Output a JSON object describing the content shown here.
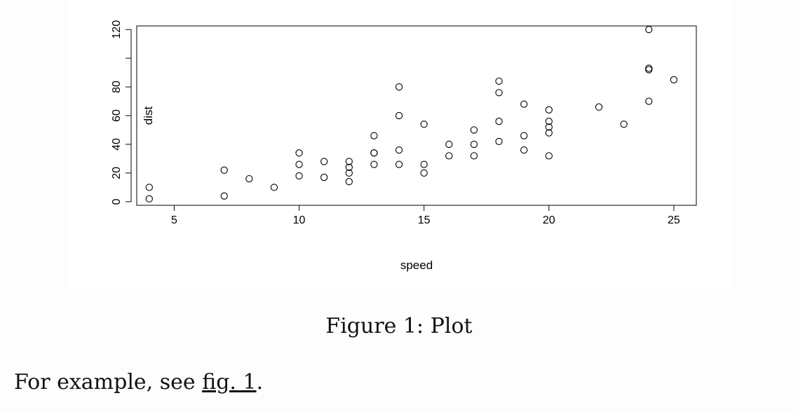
{
  "caption": "Figure 1: Plot",
  "body": {
    "prefix": "For example, see ",
    "link_text": "fig. 1",
    "suffix": "."
  },
  "chart_data": {
    "type": "scatter",
    "title": "",
    "xlabel": "speed",
    "ylabel": "dist",
    "xlim": [
      3.5,
      25.9
    ],
    "ylim": [
      -2.5,
      122.5
    ],
    "xticks": [
      5,
      10,
      15,
      20,
      25
    ],
    "yticks": [
      0,
      20,
      40,
      60,
      80,
      120
    ],
    "grid": false,
    "marker": "open-circle",
    "x": [
      4,
      4,
      7,
      7,
      8,
      9,
      10,
      10,
      10,
      11,
      11,
      12,
      12,
      12,
      12,
      13,
      13,
      13,
      13,
      14,
      14,
      14,
      14,
      15,
      15,
      15,
      16,
      16,
      17,
      17,
      17,
      18,
      18,
      18,
      18,
      19,
      19,
      19,
      20,
      20,
      20,
      20,
      20,
      22,
      23,
      24,
      24,
      24,
      24,
      25
    ],
    "y": [
      2,
      10,
      4,
      22,
      16,
      10,
      18,
      26,
      34,
      17,
      28,
      14,
      20,
      24,
      28,
      26,
      34,
      34,
      46,
      26,
      36,
      60,
      80,
      20,
      26,
      54,
      32,
      40,
      32,
      40,
      50,
      42,
      56,
      76,
      84,
      36,
      46,
      68,
      32,
      48,
      52,
      56,
      64,
      66,
      54,
      70,
      92,
      93,
      120,
      85
    ]
  }
}
